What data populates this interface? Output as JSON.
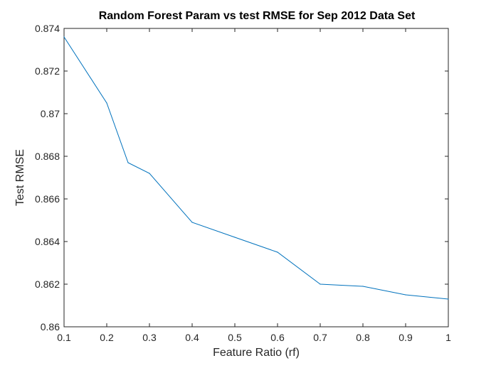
{
  "chart_data": {
    "type": "line",
    "title": "Random Forest Param vs test RMSE for Sep 2012 Data Set",
    "xlabel": "Feature Ratio (rf)",
    "ylabel": "Test RMSE",
    "xlim": [
      0.1,
      1
    ],
    "ylim": [
      0.86,
      0.874
    ],
    "xticks": [
      "0.1",
      "0.2",
      "0.3",
      "0.4",
      "0.5",
      "0.6",
      "0.7",
      "0.8",
      "0.9",
      "1"
    ],
    "yticks": [
      "0.86",
      "0.862",
      "0.864",
      "0.866",
      "0.868",
      "0.87",
      "0.872",
      "0.874"
    ],
    "grid": false,
    "series": [
      {
        "color": "#0072bd",
        "x": [
          0.1,
          0.2,
          0.25,
          0.3,
          0.4,
          0.5,
          0.6,
          0.7,
          0.8,
          0.9,
          1.0
        ],
        "y": [
          0.8736,
          0.8705,
          0.8677,
          0.8672,
          0.8649,
          0.8642,
          0.8635,
          0.862,
          0.8619,
          0.8615,
          0.8613
        ]
      }
    ]
  }
}
